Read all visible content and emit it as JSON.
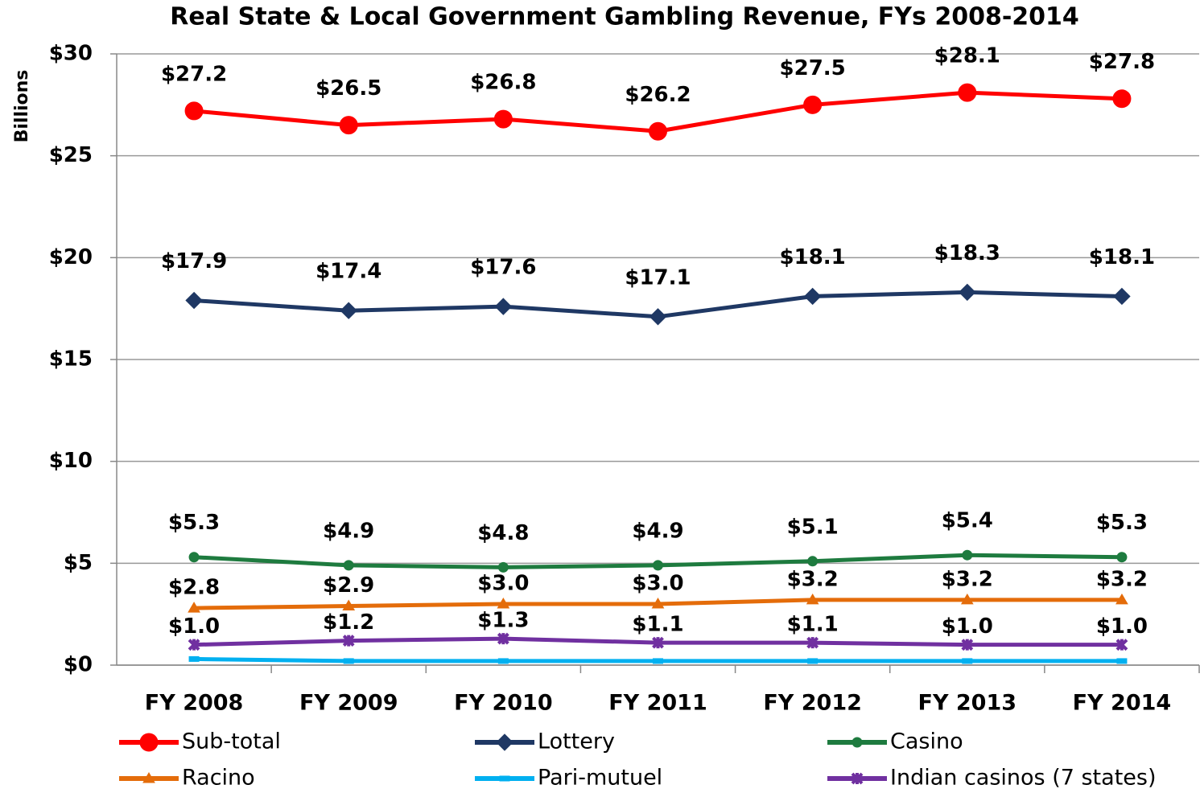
{
  "chart_data": {
    "type": "line",
    "title": "Real State & Local Government Gambling Revenue, FYs 2008-2014",
    "y_label": "Billions",
    "categories": [
      "FY 2008",
      "FY 2009",
      "FY 2010",
      "FY 2011",
      "FY 2012",
      "FY 2013",
      "FY 2014"
    ],
    "ylim": [
      0,
      30
    ],
    "yticks": [
      {
        "value": 0,
        "label": "$0"
      },
      {
        "value": 5,
        "label": "$5"
      },
      {
        "value": 10,
        "label": "$10"
      },
      {
        "value": 15,
        "label": "$15"
      },
      {
        "value": 20,
        "label": "$20"
      },
      {
        "value": 25,
        "label": "$25"
      },
      {
        "value": 30,
        "label": "$30"
      }
    ],
    "grid": true,
    "legend": "bottom",
    "series": [
      {
        "name": "Sub-total",
        "color": "#ff0000",
        "marker": "circle",
        "values": [
          27.2,
          26.5,
          26.8,
          26.2,
          27.5,
          28.1,
          27.8
        ],
        "value_labels": [
          "$27.2",
          "$26.5",
          "$26.8",
          "$26.2",
          "$27.5",
          "$28.1",
          "$27.8"
        ]
      },
      {
        "name": "Lottery",
        "color": "#1f3864",
        "marker": "diamond",
        "values": [
          17.9,
          17.4,
          17.6,
          17.1,
          18.1,
          18.3,
          18.1
        ],
        "value_labels": [
          "$17.9",
          "$17.4",
          "$17.6",
          "$17.1",
          "$18.1",
          "$18.3",
          "$18.1"
        ]
      },
      {
        "name": "Casino",
        "color": "#1e7b3f",
        "marker": "dot",
        "values": [
          5.3,
          4.9,
          4.8,
          4.9,
          5.1,
          5.4,
          5.3
        ],
        "value_labels": [
          "$5.3",
          "$4.9",
          "$4.8",
          "$4.9",
          "$5.1",
          "$5.4",
          "$5.3"
        ]
      },
      {
        "name": "Racino",
        "color": "#e46c0a",
        "marker": "triangle",
        "values": [
          2.8,
          2.9,
          3.0,
          3.0,
          3.2,
          3.2,
          3.2
        ],
        "value_labels": [
          "$2.8",
          "$2.9",
          "$3.0",
          "$3.0",
          "$3.2",
          "$3.2",
          "$3.2"
        ]
      },
      {
        "name": "Pari-mutuel",
        "color": "#00b0f0",
        "marker": "dash",
        "values": [
          0.3,
          0.2,
          0.2,
          0.2,
          0.2,
          0.2,
          0.2
        ]
      },
      {
        "name": "Indian casinos (7 states)",
        "color": "#7030a0",
        "marker": "star",
        "values": [
          1.0,
          1.2,
          1.3,
          1.1,
          1.1,
          1.0,
          1.0
        ],
        "value_labels": [
          "$1.0",
          "$1.2",
          "$1.3",
          "$1.1",
          "$1.1",
          "$1.0",
          "$1.0"
        ]
      }
    ]
  }
}
